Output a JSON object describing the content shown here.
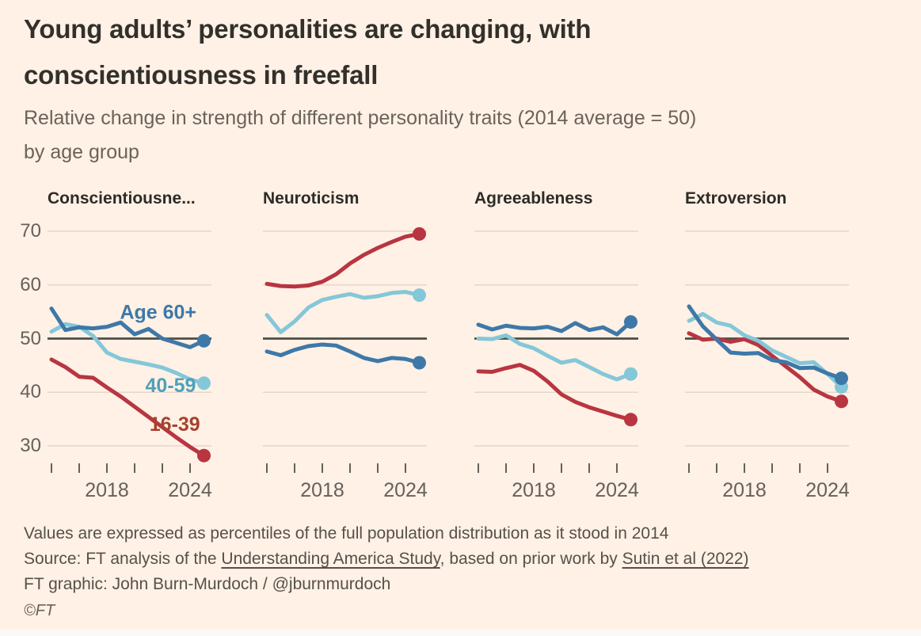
{
  "header": {
    "title_lines": [
      "Young adults’ personalities are changing, with",
      "conscientiousness in freefall"
    ],
    "subtitle_lines": [
      "Relative change in strength of different personality traits (2014 average = 50)",
      "by age group"
    ]
  },
  "chart_data": {
    "type": "line",
    "description": "Four small-multiple line charts, one per personality trait, three age-group series each",
    "x_years": [
      2014,
      2015,
      2016,
      2017,
      2018,
      2019,
      2020,
      2021,
      2022,
      2023,
      2024,
      2025
    ],
    "xticks": [
      2014,
      2016,
      2018,
      2020,
      2022,
      2024
    ],
    "xtick_labels": [
      {
        "year": 2018,
        "label": "2018"
      },
      {
        "year": 2024,
        "label": "2024"
      }
    ],
    "yticks": [
      70,
      60,
      50,
      40,
      30
    ],
    "ylim": [
      26,
      73
    ],
    "baseline": 50,
    "grid": "horizontal",
    "legend": "inline-labels-on-first-panel",
    "series_meta": {
      "age16_39": {
        "label": "16-39",
        "color": "#b83541",
        "label_color": "#a5422d"
      },
      "age40_59": {
        "label": "40-59",
        "color": "#84c7d9",
        "label_color": "#4fa0ba"
      },
      "age60": {
        "label": "Age 60+",
        "color": "#3e78a8",
        "label_color": "#3e78a8"
      }
    },
    "draw_order": [
      "age16_39",
      "age40_59",
      "age60"
    ],
    "panels": [
      {
        "title": "Conscientiousne...",
        "series": {
          "age60": [
            55.6,
            51.6,
            52.1,
            51.9,
            52.2,
            53.0,
            50.8,
            51.8,
            50.0,
            49.2,
            48.4,
            49.6
          ],
          "age40_59": [
            51.3,
            52.7,
            52.2,
            50.5,
            47.4,
            46.2,
            45.7,
            45.2,
            44.6,
            43.6,
            42.4,
            41.7
          ],
          "age16_39": [
            46.1,
            44.7,
            42.9,
            42.7,
            40.9,
            39.2,
            37.3,
            35.4,
            33.5,
            31.6,
            29.8,
            28.2
          ]
        }
      },
      {
        "title": "Neuroticism",
        "series": {
          "age60": [
            47.6,
            46.9,
            47.9,
            48.6,
            48.9,
            48.7,
            47.6,
            46.4,
            45.8,
            46.4,
            46.2,
            45.5
          ],
          "age40_59": [
            54.4,
            51.2,
            53.2,
            55.8,
            57.2,
            57.8,
            58.3,
            57.6,
            57.9,
            58.5,
            58.7,
            58.1
          ],
          "age16_39": [
            60.2,
            59.8,
            59.7,
            59.9,
            60.6,
            62.0,
            64.0,
            65.6,
            66.9,
            68.0,
            69.0,
            69.5
          ]
        }
      },
      {
        "title": "Agreeableness",
        "series": {
          "age60": [
            52.6,
            51.7,
            52.4,
            52.0,
            51.9,
            52.2,
            51.4,
            52.9,
            51.6,
            52.1,
            50.8,
            53.1
          ],
          "age40_59": [
            50.0,
            49.9,
            50.6,
            49.0,
            48.2,
            46.8,
            45.5,
            46.0,
            44.7,
            43.4,
            42.4,
            43.4
          ],
          "age16_39": [
            43.9,
            43.8,
            44.5,
            45.1,
            44.0,
            42.0,
            39.6,
            38.2,
            37.2,
            36.4,
            35.6,
            34.9
          ]
        }
      },
      {
        "title": "Extroversion",
        "series": {
          "age60": [
            56.0,
            52.3,
            49.8,
            47.4,
            47.2,
            47.3,
            46.0,
            45.6,
            44.5,
            44.6,
            43.5,
            42.6
          ],
          "age40_59": [
            53.3,
            54.6,
            53.0,
            52.4,
            50.6,
            49.6,
            47.8,
            46.6,
            45.4,
            45.6,
            43.4,
            41.0
          ],
          "age16_39": [
            51.0,
            49.8,
            50.0,
            49.4,
            49.9,
            48.8,
            46.8,
            44.8,
            42.8,
            40.5,
            39.2,
            38.3
          ]
        }
      }
    ],
    "annotations": [
      {
        "panel": 0,
        "text": "Age 60+",
        "year": 2021.7,
        "value": 54.9,
        "series": "age60"
      },
      {
        "panel": 0,
        "text": "40-59",
        "year": 2022.6,
        "value": 41.2,
        "series": "age40_59"
      },
      {
        "panel": 0,
        "text": "16-39",
        "year": 2022.9,
        "value": 34.0,
        "series": "age16_39"
      }
    ],
    "colors": {
      "background": "#fff1e5",
      "gridline": "#e4d7ca",
      "baseline": "#4f4a44",
      "tick": "#66605b",
      "axis_label": "#66605b"
    }
  },
  "footer": {
    "note": "Values are expressed as percentiles of the full population distribution as it stood in 2014",
    "source_prefix": "Source: FT analysis of the ",
    "source_link1": "Understanding America Study",
    "source_mid": ", based on prior work by ",
    "source_link2": "Sutin et al (2022)",
    "credit": "FT graphic: John Burn-Murdoch / @jburnmurdoch",
    "copyright": "©FT"
  }
}
